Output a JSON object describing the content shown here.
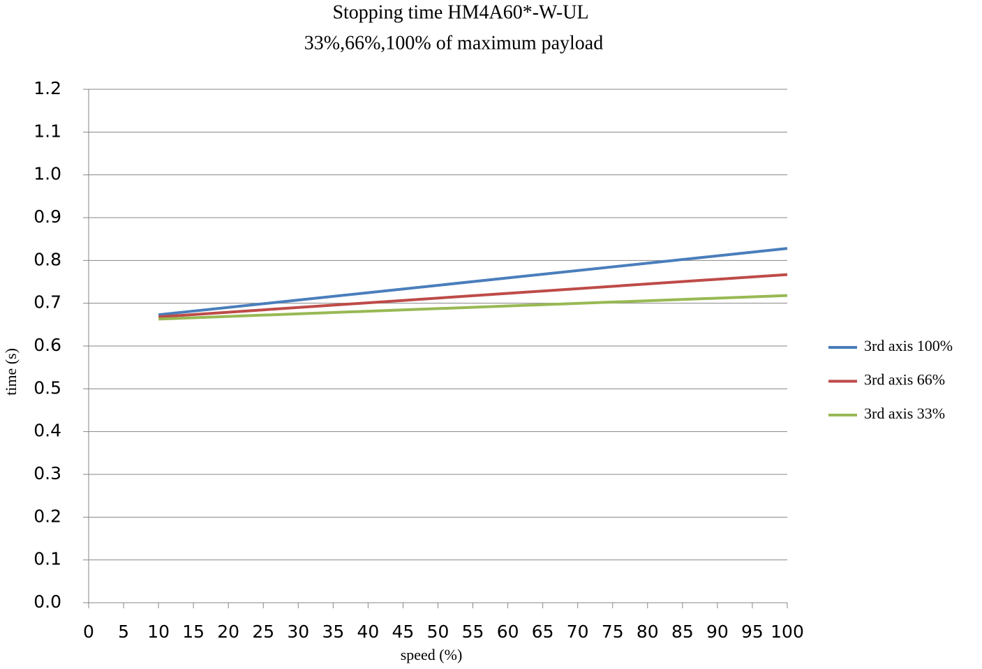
{
  "chart_data": {
    "type": "line",
    "title": "Stopping time HM4A60*-W-UL",
    "subtitle": "33%,66%,100% of maximum payload",
    "x_label": "speed (%)",
    "y_label": "time (s)",
    "x": [
      10,
      100
    ],
    "series": [
      {
        "name": "3rd axis 100%",
        "color": "#4a7ebb",
        "values": [
          0.673,
          0.828
        ]
      },
      {
        "name": "3rd axis 66%",
        "color": "#be4b48",
        "values": [
          0.668,
          0.767
        ]
      },
      {
        "name": "3rd axis 33%",
        "color": "#98b954",
        "values": [
          0.663,
          0.718
        ]
      }
    ],
    "xlim": [
      0,
      100
    ],
    "xticks": [
      0,
      5,
      10,
      15,
      20,
      25,
      30,
      35,
      40,
      45,
      50,
      55,
      60,
      65,
      70,
      75,
      80,
      85,
      90,
      95,
      100
    ],
    "ylim": [
      0,
      1.2
    ],
    "yticks": [
      {
        "value": 0,
        "label": "0.0"
      },
      0.1,
      0.2,
      0.3,
      0.4,
      0.5,
      0.6,
      0.7,
      0.8,
      0.9,
      {
        "value": 1,
        "label": "1.0"
      },
      1.1,
      1.2
    ],
    "grid": true,
    "legend": "right"
  }
}
